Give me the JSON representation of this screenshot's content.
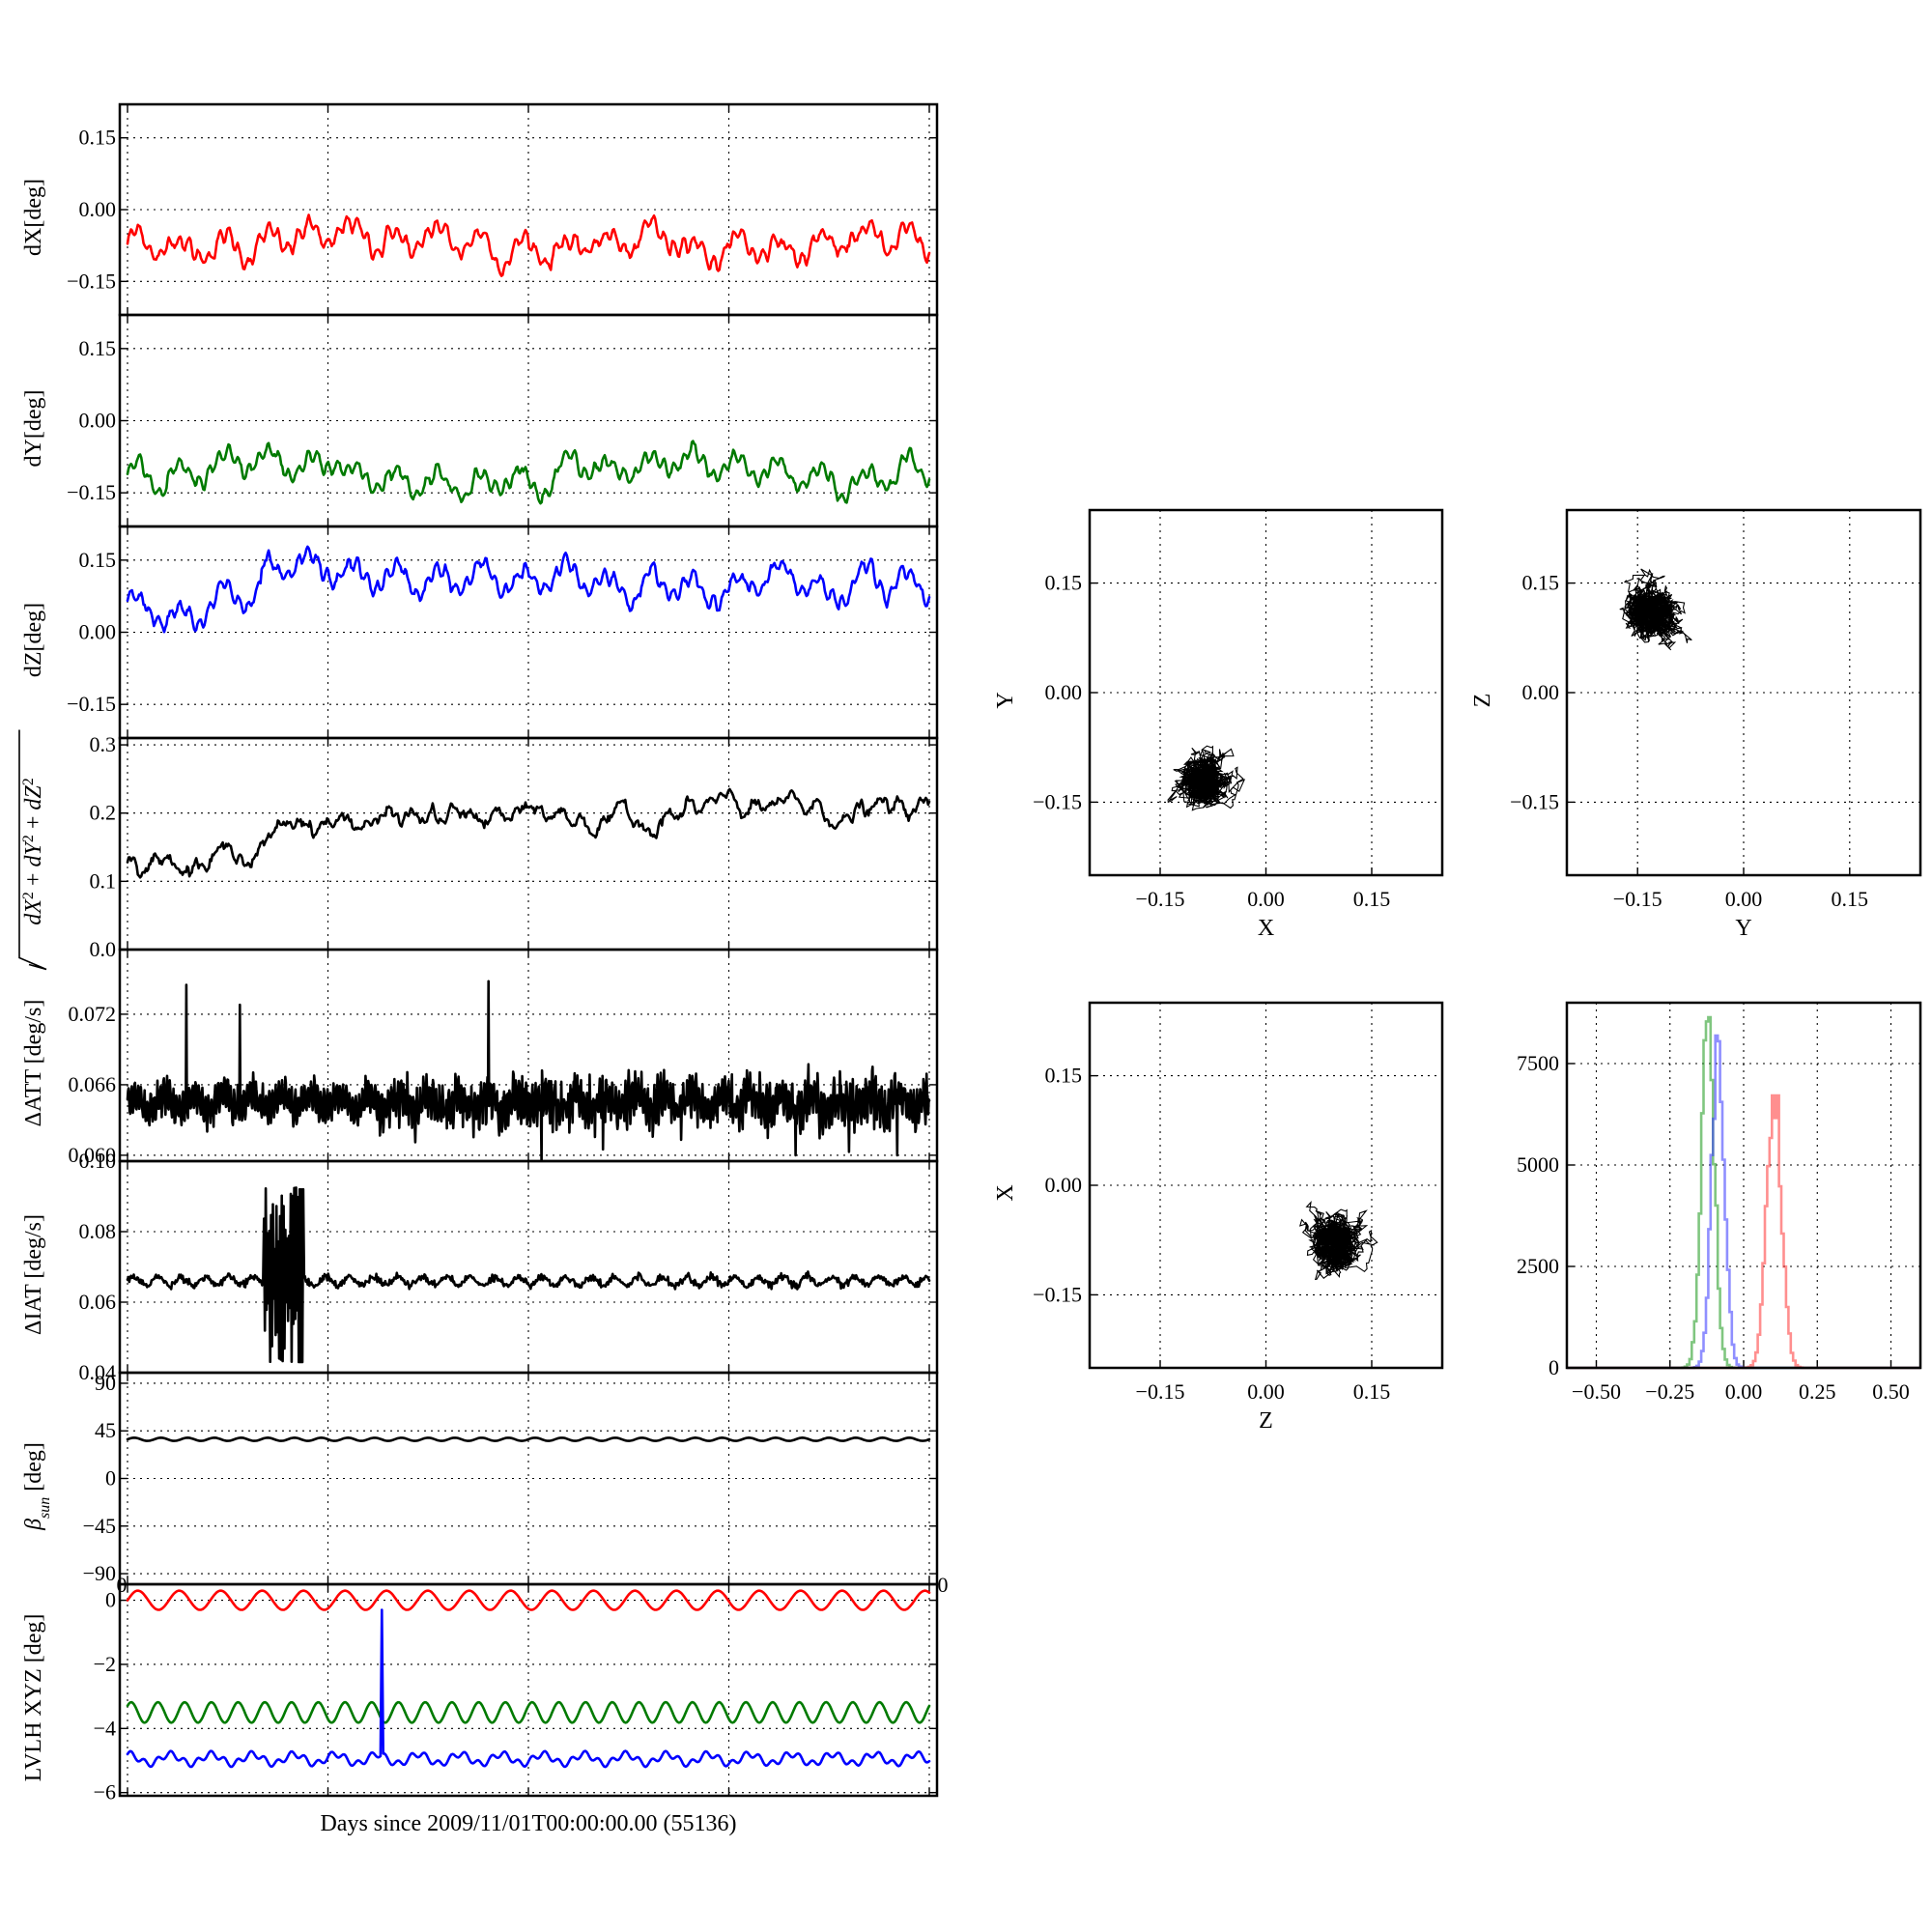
{
  "chart_data": [
    {
      "id": "dx",
      "type": "line",
      "ylabel": "dX[deg]",
      "ylim": [
        -0.22,
        0.22
      ],
      "yticks": [
        -0.15,
        0.0,
        0.15
      ],
      "ytick_labels": [
        "−0.15",
        "0.00",
        "0.15"
      ],
      "xlim": [
        0,
        30
      ],
      "grid": true,
      "series": [
        {
          "color": "#ff0000",
          "baseline": -0.07,
          "noise": 0.012,
          "osc_amp": 0.025,
          "osc_period": 1.6,
          "points": 700
        }
      ]
    },
    {
      "id": "dy",
      "type": "line",
      "ylabel": "dY[deg]",
      "ylim": [
        -0.22,
        0.22
      ],
      "yticks": [
        -0.15,
        0.0,
        0.15
      ],
      "ytick_labels": [
        "−0.15",
        "0.00",
        "0.15"
      ],
      "xlim": [
        0,
        30
      ],
      "grid": true,
      "series": [
        {
          "color": "#007a00",
          "baseline": -0.11,
          "noise": 0.011,
          "osc_amp": 0.025,
          "osc_period": 1.6,
          "points": 700
        }
      ]
    },
    {
      "id": "dz",
      "type": "line",
      "ylabel": "dZ[deg]",
      "ylim": [
        -0.22,
        0.22
      ],
      "yticks": [
        -0.15,
        0.0,
        0.15
      ],
      "ytick_labels": [
        "−0.15",
        "0.00",
        "0.15"
      ],
      "xlim": [
        0,
        30
      ],
      "grid": true,
      "series": [
        {
          "color": "#0000ff",
          "baseline": 0.1,
          "noise": 0.012,
          "osc_amp": 0.025,
          "osc_period": 1.6,
          "points": 700
        }
      ]
    },
    {
      "id": "mag",
      "type": "line",
      "ylabel_parts": [
        "dX",
        "2",
        " + ",
        "dY",
        "2",
        " + ",
        "dZ",
        "2"
      ],
      "ylim": [
        0.0,
        0.31
      ],
      "yticks": [
        0.0,
        0.1,
        0.2,
        0.3
      ],
      "ytick_labels": [
        "0.0",
        "0.1",
        "0.2",
        "0.3"
      ],
      "xlim": [
        0,
        30
      ],
      "grid": true,
      "series": [
        {
          "color": "#000000",
          "points": 700
        }
      ]
    },
    {
      "id": "datt",
      "type": "line",
      "ylabel": "ΔATT [deg/s]",
      "ylim": [
        0.0595,
        0.0775
      ],
      "yticks": [
        0.06,
        0.066,
        0.072
      ],
      "ytick_labels": [
        "0.060",
        "0.066",
        "0.072"
      ],
      "xlim": [
        0,
        30
      ],
      "grid": true,
      "series": [
        {
          "color": "#000000",
          "baseline": 0.065,
          "points": 1500
        }
      ]
    },
    {
      "id": "diat",
      "type": "line",
      "ylabel": "ΔIAT [deg/s]",
      "ylim": [
        0.04,
        0.1
      ],
      "yticks": [
        0.04,
        0.06,
        0.08,
        0.1
      ],
      "ytick_labels": [
        "0.04",
        "0.06",
        "0.08",
        "0.10"
      ],
      "xlim": [
        0,
        30
      ],
      "grid": true,
      "series": [
        {
          "color": "#000000",
          "baseline": 0.066,
          "points": 900
        }
      ]
    },
    {
      "id": "beta",
      "type": "line",
      "ylabel_parts": [
        "β",
        "sun",
        " [deg]"
      ],
      "ylim": [
        -100,
        100
      ],
      "yticks": [
        -90,
        -45,
        0,
        45,
        90
      ],
      "ytick_labels": [
        "−90",
        "−45",
        "0",
        "45",
        "90"
      ],
      "xlim": [
        0,
        30
      ],
      "grid": true,
      "series": [
        {
          "color": "#000000",
          "baseline": 37,
          "osc_amp": 1.5,
          "osc_period": 1.0,
          "points": 600
        }
      ]
    },
    {
      "id": "lvlh",
      "type": "line",
      "ylabel": "LVLH XYZ [deg]",
      "ylim": [
        -6.1,
        0.5
      ],
      "yticks": [
        -6,
        -4,
        -2,
        0
      ],
      "ytick_labels": [
        "−6",
        "−4",
        "−2",
        "0"
      ],
      "xlim": [
        0,
        30
      ],
      "grid": true,
      "xtick_labels": [
        "0",
        "0"
      ],
      "xlabel": "Days since 2009/11/01T00:00:00.00 (55136)",
      "series": [
        {
          "color": "#ff0000",
          "baseline": 0.0,
          "osc_amp": 0.3,
          "osc_period": 1.55,
          "points": 600
        },
        {
          "color": "#007a00",
          "baseline": -3.5,
          "osc_amp": 0.32,
          "osc_period": 1.0,
          "points": 600
        },
        {
          "color": "#0000ff",
          "baseline": -4.95,
          "osc_amp": 0.15,
          "osc_period": 1.55,
          "points": 600
        }
      ]
    },
    {
      "id": "xy",
      "type": "scatter",
      "xlabel": "X",
      "ylabel": "Y",
      "xlim": [
        -0.25,
        0.25
      ],
      "ylim": [
        -0.25,
        0.25
      ],
      "ticks": [
        -0.15,
        0.0,
        0.15
      ],
      "tick_labels": [
        "−0.15",
        "0.00",
        "0.15"
      ],
      "grid": true,
      "center": [
        -0.09,
        -0.12
      ],
      "spread": [
        0.022,
        0.022
      ]
    },
    {
      "id": "yz",
      "type": "scatter",
      "xlabel": "Y",
      "ylabel": "Z",
      "xlim": [
        -0.25,
        0.25
      ],
      "ylim": [
        -0.25,
        0.25
      ],
      "ticks": [
        -0.15,
        0.0,
        0.15
      ],
      "tick_labels": [
        "−0.15",
        "0.00",
        "0.15"
      ],
      "grid": true,
      "center": [
        -0.13,
        0.11
      ],
      "spread": [
        0.02,
        0.025
      ]
    },
    {
      "id": "zx",
      "type": "scatter",
      "xlabel": "Z",
      "ylabel": "X",
      "xlim": [
        -0.25,
        0.25
      ],
      "ylim": [
        -0.25,
        0.25
      ],
      "ticks": [
        -0.15,
        0.0,
        0.15
      ],
      "tick_labels": [
        "−0.15",
        "0.00",
        "0.15"
      ],
      "grid": true,
      "center": [
        0.1,
        -0.08
      ],
      "spread": [
        0.022,
        0.02
      ]
    },
    {
      "id": "hist",
      "type": "histogram",
      "xlim": [
        -0.6,
        0.6
      ],
      "ylim": [
        0,
        9000
      ],
      "xticks": [
        -0.5,
        -0.25,
        0.0,
        0.25,
        0.5
      ],
      "xtick_labels": [
        "−0.50",
        "−0.25",
        "0.00",
        "0.25",
        "0.50"
      ],
      "yticks": [
        0,
        2500,
        5000,
        7500
      ],
      "ytick_labels": [
        "0",
        "2500",
        "5000",
        "7500"
      ],
      "grid": true,
      "series": [
        {
          "color": "#2ca02c",
          "opacity": 0.6,
          "mean": -0.125,
          "sd": 0.022,
          "peak": 8800
        },
        {
          "color": "#3333ff",
          "opacity": 0.55,
          "mean": -0.09,
          "sd": 0.022,
          "peak": 8000
        },
        {
          "color": "#ff3333",
          "opacity": 0.55,
          "mean": 0.1,
          "sd": 0.025,
          "peak": 7000
        }
      ]
    }
  ]
}
